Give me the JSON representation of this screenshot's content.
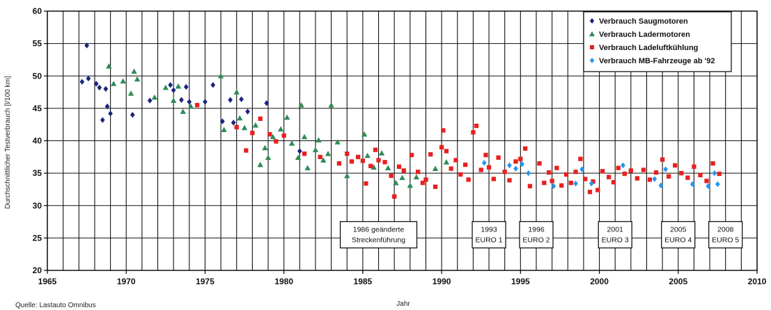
{
  "chart_data": {
    "type": "scatter",
    "xlabel": "Jahr",
    "ylabel": "Durchschnittlicher Testverbrauch [l/100 km]",
    "xlim": [
      1965,
      2010
    ],
    "ylim": [
      20,
      60
    ],
    "x_ticks": [
      1965,
      1970,
      1975,
      1980,
      1985,
      1990,
      1995,
      2000,
      2005,
      2010
    ],
    "x_tick_labels": [
      "1965",
      "1970",
      "1975",
      "1980",
      "1985",
      "1990",
      "1995",
      "2000",
      "2005",
      "2010"
    ],
    "y_ticks": [
      20,
      25,
      30,
      35,
      40,
      45,
      50,
      55,
      60
    ],
    "y_tick_labels": [
      "20",
      "25",
      "30",
      "35",
      "40",
      "45",
      "50",
      "55",
      "60"
    ],
    "grid": true,
    "legend_position": "top-right",
    "source": "Quelle: Lastauto Omnibus",
    "series": [
      {
        "name": "Verbrauch Saugmotoren",
        "color": "#1a237e",
        "marker": "diamond",
        "points": [
          [
            1967.2,
            49.1
          ],
          [
            1967.5,
            54.7
          ],
          [
            1967.6,
            49.6
          ],
          [
            1968.1,
            48.8
          ],
          [
            1968.3,
            48.2
          ],
          [
            1968.5,
            43.2
          ],
          [
            1968.7,
            48.0
          ],
          [
            1968.8,
            45.3
          ],
          [
            1969.0,
            44.2
          ],
          [
            1970.4,
            44.0
          ],
          [
            1971.5,
            46.2
          ],
          [
            1972.8,
            48.6
          ],
          [
            1973.0,
            47.8
          ],
          [
            1973.5,
            46.3
          ],
          [
            1973.8,
            48.3
          ],
          [
            1974.0,
            46.0
          ],
          [
            1975.0,
            46.0
          ],
          [
            1975.5,
            48.6
          ],
          [
            1976.1,
            43.0
          ],
          [
            1976.6,
            46.3
          ],
          [
            1976.8,
            42.8
          ],
          [
            1977.3,
            46.4
          ],
          [
            1977.7,
            44.5
          ],
          [
            1978.9,
            45.8
          ],
          [
            1981.0,
            38.4
          ]
        ]
      },
      {
        "name": "Verbrauch Ladermotoren",
        "color": "#2e8b57",
        "marker": "triangle",
        "points": [
          [
            1968.9,
            51.5
          ],
          [
            1969.2,
            48.8
          ],
          [
            1969.8,
            49.2
          ],
          [
            1970.3,
            47.3
          ],
          [
            1970.5,
            50.7
          ],
          [
            1970.7,
            49.5
          ],
          [
            1971.8,
            46.7
          ],
          [
            1972.5,
            48.2
          ],
          [
            1973.0,
            46.2
          ],
          [
            1973.3,
            48.4
          ],
          [
            1973.6,
            44.5
          ],
          [
            1974.1,
            45.3
          ],
          [
            1976.0,
            50.0
          ],
          [
            1976.2,
            41.7
          ],
          [
            1977.0,
            47.5
          ],
          [
            1977.2,
            43.5
          ],
          [
            1977.5,
            42.0
          ],
          [
            1978.2,
            42.4
          ],
          [
            1978.5,
            36.3
          ],
          [
            1978.8,
            38.9
          ],
          [
            1979.0,
            37.4
          ],
          [
            1979.3,
            40.6
          ],
          [
            1979.8,
            41.8
          ],
          [
            1980.2,
            43.6
          ],
          [
            1980.5,
            39.6
          ],
          [
            1980.9,
            37.4
          ],
          [
            1981.1,
            45.5
          ],
          [
            1981.3,
            40.6
          ],
          [
            1981.5,
            35.8
          ],
          [
            1982.0,
            38.6
          ],
          [
            1982.2,
            40.1
          ],
          [
            1982.5,
            37.0
          ],
          [
            1982.8,
            38.0
          ],
          [
            1983.0,
            45.5
          ],
          [
            1983.4,
            39.8
          ],
          [
            1984.0,
            34.6
          ],
          [
            1985.1,
            41.0
          ],
          [
            1985.3,
            37.7
          ],
          [
            1985.7,
            35.9
          ],
          [
            1986.2,
            38.1
          ],
          [
            1986.6,
            35.8
          ],
          [
            1987.1,
            33.5
          ],
          [
            1987.5,
            34.3
          ],
          [
            1988.0,
            33.1
          ],
          [
            1988.4,
            34.4
          ],
          [
            1989.6,
            35.7
          ],
          [
            1990.3,
            36.7
          ]
        ]
      },
      {
        "name": "Verbrauch Ladeluftkühlung",
        "color": "#e82020",
        "marker": "square",
        "points": [
          [
            1974.5,
            45.5
          ],
          [
            1977.0,
            42.1
          ],
          [
            1977.6,
            38.5
          ],
          [
            1978.0,
            41.2
          ],
          [
            1978.5,
            43.4
          ],
          [
            1979.1,
            41.0
          ],
          [
            1979.5,
            39.9
          ],
          [
            1980.0,
            40.8
          ],
          [
            1981.3,
            38.0
          ],
          [
            1982.3,
            37.5
          ],
          [
            1983.5,
            36.5
          ],
          [
            1984.0,
            38.0
          ],
          [
            1984.3,
            36.8
          ],
          [
            1984.7,
            37.5
          ],
          [
            1985.0,
            36.9
          ],
          [
            1985.2,
            33.4
          ],
          [
            1985.5,
            36.1
          ],
          [
            1985.8,
            38.6
          ],
          [
            1986.0,
            37.0
          ],
          [
            1986.4,
            36.7
          ],
          [
            1986.8,
            34.6
          ],
          [
            1987.0,
            31.4
          ],
          [
            1987.3,
            36.0
          ],
          [
            1987.6,
            35.4
          ],
          [
            1988.1,
            37.8
          ],
          [
            1988.5,
            35.2
          ],
          [
            1988.8,
            33.5
          ],
          [
            1989.0,
            34.0
          ],
          [
            1989.3,
            37.9
          ],
          [
            1989.6,
            32.9
          ],
          [
            1990.0,
            39.0
          ],
          [
            1990.1,
            41.6
          ],
          [
            1990.3,
            38.4
          ],
          [
            1990.6,
            35.7
          ],
          [
            1990.9,
            37.0
          ],
          [
            1991.2,
            34.8
          ],
          [
            1991.5,
            36.3
          ],
          [
            1991.7,
            34.0
          ],
          [
            1992.0,
            41.3
          ],
          [
            1992.2,
            42.3
          ],
          [
            1992.5,
            35.5
          ],
          [
            1992.8,
            37.8
          ],
          [
            1993.0,
            35.9
          ],
          [
            1993.3,
            34.1
          ],
          [
            1993.6,
            37.4
          ],
          [
            1994.0,
            35.2
          ],
          [
            1994.3,
            33.9
          ],
          [
            1994.7,
            36.8
          ],
          [
            1995.0,
            37.2
          ],
          [
            1995.3,
            38.8
          ],
          [
            1995.6,
            33.0
          ],
          [
            1996.2,
            36.5
          ],
          [
            1996.5,
            33.5
          ],
          [
            1996.8,
            35.1
          ],
          [
            1997.0,
            33.8
          ],
          [
            1997.3,
            35.8
          ],
          [
            1997.6,
            33.1
          ],
          [
            1997.9,
            34.8
          ],
          [
            1998.2,
            33.5
          ],
          [
            1998.5,
            35.2
          ],
          [
            1998.8,
            37.2
          ],
          [
            1999.1,
            34.1
          ],
          [
            1999.4,
            32.1
          ],
          [
            1999.6,
            33.7
          ],
          [
            1999.9,
            32.4
          ],
          [
            2000.2,
            35.3
          ],
          [
            2000.6,
            34.4
          ],
          [
            2000.9,
            33.6
          ],
          [
            2001.2,
            35.8
          ],
          [
            2001.6,
            34.9
          ],
          [
            2002.0,
            35.4
          ],
          [
            2002.4,
            34.2
          ],
          [
            2002.8,
            35.5
          ],
          [
            2003.2,
            34.0
          ],
          [
            2003.6,
            35.1
          ],
          [
            2004.0,
            37.1
          ],
          [
            2004.4,
            34.5
          ],
          [
            2004.8,
            36.2
          ],
          [
            2005.2,
            35.0
          ],
          [
            2005.6,
            34.3
          ],
          [
            2006.0,
            36.0
          ],
          [
            2006.4,
            34.7
          ],
          [
            2006.8,
            33.8
          ],
          [
            2007.2,
            36.5
          ],
          [
            2007.6,
            34.9
          ]
        ]
      },
      {
        "name": "Verbrauch MB-Fahrzeuge ab '92",
        "color": "#2196f3",
        "marker": "diamond",
        "points": [
          [
            1992.7,
            36.6
          ],
          [
            1994.3,
            36.2
          ],
          [
            1994.7,
            35.7
          ],
          [
            1995.1,
            36.4
          ],
          [
            1995.5,
            35.0
          ],
          [
            1997.1,
            33.0
          ],
          [
            1998.5,
            33.4
          ],
          [
            1998.9,
            35.6
          ],
          [
            1999.5,
            33.4
          ],
          [
            2001.5,
            36.2
          ],
          [
            2003.5,
            34.1
          ],
          [
            2003.9,
            33.1
          ],
          [
            2004.2,
            35.6
          ],
          [
            2005.9,
            33.3
          ],
          [
            2006.9,
            33.0
          ],
          [
            2007.3,
            35.0
          ],
          [
            2007.5,
            33.3
          ]
        ]
      }
    ],
    "annotations": [
      {
        "lines": [
          "1986 geänderte",
          "Streckenführung"
        ],
        "x": 1986,
        "y": 25.5
      },
      {
        "lines": [
          "1993",
          "EURO 1"
        ],
        "x": 1993,
        "y": 25.5
      },
      {
        "lines": [
          "1996",
          "EURO 2"
        ],
        "x": 1996,
        "y": 25.5
      },
      {
        "lines": [
          "2001",
          "EURO 3"
        ],
        "x": 2001,
        "y": 25.5
      },
      {
        "lines": [
          "2005",
          "EURO 4"
        ],
        "x": 2005,
        "y": 25.5
      },
      {
        "lines": [
          "2008",
          "EURO 5"
        ],
        "x": 2008,
        "y": 25.5
      }
    ]
  }
}
